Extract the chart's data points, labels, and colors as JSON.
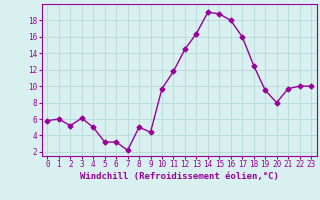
{
  "x": [
    0,
    1,
    2,
    3,
    4,
    5,
    6,
    7,
    8,
    9,
    10,
    11,
    12,
    13,
    14,
    15,
    16,
    17,
    18,
    19,
    20,
    21,
    22,
    23
  ],
  "y": [
    5.8,
    6.0,
    5.2,
    6.1,
    5.0,
    3.2,
    3.2,
    2.2,
    5.0,
    4.4,
    9.7,
    11.8,
    14.5,
    16.4,
    19.0,
    18.8,
    18.0,
    16.0,
    12.5,
    9.5,
    8.0,
    9.7,
    10.0,
    10.0
  ],
  "line_color": "#990099",
  "marker": "D",
  "marker_size": 2.5,
  "xlabel": "Windchill (Refroidissement éolien,°C)",
  "xlabel_fontsize": 6.5,
  "xtick_labels": [
    "0",
    "1",
    "2",
    "3",
    "4",
    "5",
    "6",
    "7",
    "8",
    "9",
    "10",
    "11",
    "12",
    "13",
    "14",
    "15",
    "16",
    "17",
    "18",
    "19",
    "20",
    "21",
    "22",
    "23"
  ],
  "ytick_vals": [
    2,
    4,
    6,
    8,
    10,
    12,
    14,
    16,
    18
  ],
  "ylim": [
    1.5,
    20.0
  ],
  "xlim": [
    -0.5,
    23.5
  ],
  "bg_color": "#d8f0f0",
  "grid_color": "#b8dada",
  "tick_fontsize": 5.5,
  "linewidth": 1.0
}
